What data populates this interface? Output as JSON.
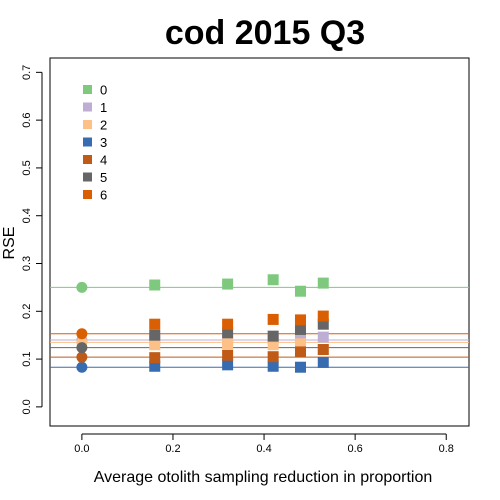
{
  "chart_data": {
    "type": "scatter",
    "title": "cod 2015 Q3",
    "xlabel": "Average otolith sampling reduction in proportion",
    "ylabel": "RSE",
    "xlim": [
      -0.07,
      0.85
    ],
    "ylim": [
      -0.04,
      0.73
    ],
    "xticks": [
      0.0,
      0.2,
      0.4,
      0.6,
      0.8
    ],
    "xtick_labels": [
      "0.0",
      "0.2",
      "0.4",
      "0.6",
      "0.8"
    ],
    "yticks": [
      0.0,
      0.1,
      0.2,
      0.3,
      0.4,
      0.5,
      0.6,
      0.7
    ],
    "ytick_labels": [
      "0.0",
      "0.1",
      "0.2",
      "0.3",
      "0.4",
      "0.5",
      "0.6",
      "0.7"
    ],
    "grid": false,
    "legend_position": "top-left",
    "series": [
      {
        "name": "0",
        "color": "#7fc97f",
        "baseline": 0.25,
        "x": [
          0.16,
          0.32,
          0.42,
          0.48,
          0.53
        ],
        "y": [
          0.255,
          0.257,
          0.266,
          0.242,
          0.259
        ]
      },
      {
        "name": "1",
        "color": "#beaed4",
        "baseline": 0.14,
        "x": [
          0.16,
          0.32,
          0.42,
          0.48,
          0.53
        ],
        "y": [
          0.14,
          0.14,
          0.142,
          0.142,
          0.146
        ]
      },
      {
        "name": "2",
        "color": "#fdc086",
        "baseline": 0.135,
        "x": [
          0.16,
          0.32,
          0.42,
          0.48,
          0.53
        ],
        "y": [
          0.13,
          0.132,
          0.13,
          0.132,
          0.12
        ]
      },
      {
        "name": "3",
        "color": "#386cb0",
        "baseline": 0.083,
        "x": [
          0.16,
          0.32,
          0.42,
          0.48,
          0.53
        ],
        "y": [
          0.085,
          0.088,
          0.085,
          0.083,
          0.093
        ]
      },
      {
        "name": "4",
        "color": "#bf5b17",
        "baseline": 0.104,
        "x": [
          0.16,
          0.32,
          0.42,
          0.48,
          0.53
        ],
        "y": [
          0.103,
          0.108,
          0.105,
          0.115,
          0.12
        ]
      },
      {
        "name": "5",
        "color": "#666666",
        "baseline": 0.124,
        "x": [
          0.16,
          0.32,
          0.42,
          0.48,
          0.53
        ],
        "y": [
          0.15,
          0.155,
          0.148,
          0.162,
          0.173
        ]
      },
      {
        "name": "6",
        "color": "#d95f02",
        "baseline": 0.153,
        "x": [
          0.16,
          0.32,
          0.42,
          0.48,
          0.53
        ],
        "y": [
          0.173,
          0.173,
          0.183,
          0.182,
          0.19
        ]
      }
    ]
  }
}
